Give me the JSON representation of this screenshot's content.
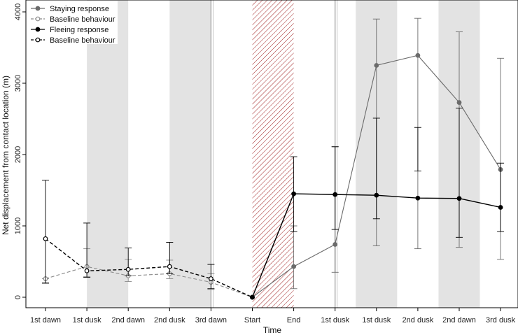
{
  "chart_data": {
    "type": "line",
    "xlabel": "Time",
    "ylabel": "Net displacement from contact location (m)",
    "ylim": [
      0,
      4000
    ],
    "yticks": [
      0,
      1000,
      2000,
      3000,
      4000
    ],
    "categories": [
      "1st dawn",
      "1st dusk",
      "2nd dawn",
      "2nd dusk",
      "3rd dawn",
      "Start",
      "End",
      "1st dusk",
      "1st dusk",
      "2nd dusk",
      "2nd dawn",
      "3rd dusk"
    ],
    "shaded_intervals": [
      [
        1,
        2
      ],
      [
        3,
        4
      ],
      [
        7.5,
        8.5
      ],
      [
        9.5,
        10.5
      ]
    ],
    "hatched_interval": [
      5,
      6
    ],
    "vertical_lines": [
      4,
      7
    ],
    "series": [
      {
        "name": "Staying response",
        "style": "solid",
        "color": "#6b6b6b",
        "marker": "filled",
        "x": [
          5,
          6,
          7,
          8,
          9,
          10,
          11
        ],
        "values": [
          0,
          430,
          740,
          3250,
          3390,
          2730,
          1790
        ],
        "err_low": [
          0,
          120,
          350,
          720,
          680,
          700,
          530
        ],
        "err_high": [
          0,
          1000,
          2110,
          3900,
          3910,
          3720,
          3350
        ]
      },
      {
        "name": "Baseline behaviour",
        "style": "dashed",
        "color": "#8a8a8a",
        "marker": "open",
        "x": [
          0,
          1,
          2,
          3,
          4,
          5
        ],
        "values": [
          260,
          430,
          300,
          330,
          210,
          0
        ],
        "err_low": [
          190,
          290,
          220,
          260,
          110,
          0
        ],
        "err_high": [
          260,
          680,
          530,
          520,
          330,
          0
        ]
      },
      {
        "name": "Fleeing response",
        "style": "solid",
        "color": "#000000",
        "marker": "filled",
        "x": [
          5,
          6,
          7,
          8,
          9,
          10,
          11
        ],
        "values": [
          0,
          1450,
          1440,
          1430,
          1390,
          1385,
          1260
        ],
        "err_low": [
          0,
          920,
          950,
          1100,
          1770,
          840,
          920
        ],
        "err_high": [
          0,
          1970,
          2110,
          2510,
          2380,
          2650,
          1880
        ]
      },
      {
        "name": "Baseline behaviour",
        "style": "dashed",
        "color": "#000000",
        "marker": "open",
        "x": [
          0,
          1,
          2,
          3,
          4,
          5
        ],
        "values": [
          820,
          370,
          390,
          430,
          260,
          0
        ],
        "err_low": [
          200,
          280,
          300,
          330,
          120,
          0
        ],
        "err_high": [
          1640,
          1040,
          690,
          770,
          460,
          0
        ]
      }
    ],
    "legend_position": "top-left"
  }
}
